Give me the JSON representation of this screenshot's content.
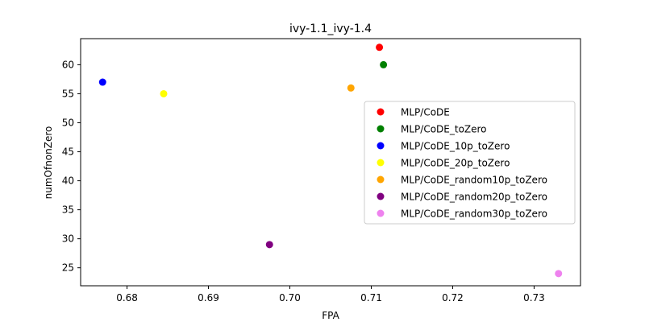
{
  "chart_data": {
    "type": "scatter",
    "title": "ivy-1.1_ivy-1.4",
    "xlabel": "FPA",
    "ylabel": "numOfnonZero",
    "xlim": [
      0.6743,
      0.7357
    ],
    "ylim": [
      21.9,
      64.5
    ],
    "xticks": [
      0.68,
      0.69,
      0.7,
      0.71,
      0.72,
      0.73
    ],
    "xtick_labels": [
      "0.68",
      "0.69",
      "0.70",
      "0.71",
      "0.72",
      "0.73"
    ],
    "yticks": [
      25,
      30,
      35,
      40,
      45,
      50,
      55,
      60
    ],
    "ytick_labels": [
      "25",
      "30",
      "35",
      "40",
      "45",
      "50",
      "55",
      "60"
    ],
    "grid": false,
    "legend_position": "center-right",
    "series": [
      {
        "name": "MLP/CoDE",
        "color": "#ff0000",
        "points": [
          {
            "x": 0.711,
            "y": 63
          }
        ]
      },
      {
        "name": "MLP/CoDE_toZero",
        "color": "#008000",
        "points": [
          {
            "x": 0.7115,
            "y": 60
          }
        ]
      },
      {
        "name": "MLP/CoDE_10p_toZero",
        "color": "#0000ff",
        "points": [
          {
            "x": 0.677,
            "y": 57
          }
        ]
      },
      {
        "name": "MLP/CoDE_20p_toZero",
        "color": "#ffff00",
        "points": [
          {
            "x": 0.6845,
            "y": 55
          }
        ]
      },
      {
        "name": "MLP/CoDE_random10p_toZero",
        "color": "#ffa500",
        "points": [
          {
            "x": 0.7075,
            "y": 56
          }
        ]
      },
      {
        "name": "MLP/CoDE_random20p_toZero",
        "color": "#800080",
        "points": [
          {
            "x": 0.6975,
            "y": 29
          }
        ]
      },
      {
        "name": "MLP/CoDE_random30p_toZero",
        "color": "#ee82ee",
        "points": [
          {
            "x": 0.733,
            "y": 24
          }
        ]
      }
    ]
  }
}
